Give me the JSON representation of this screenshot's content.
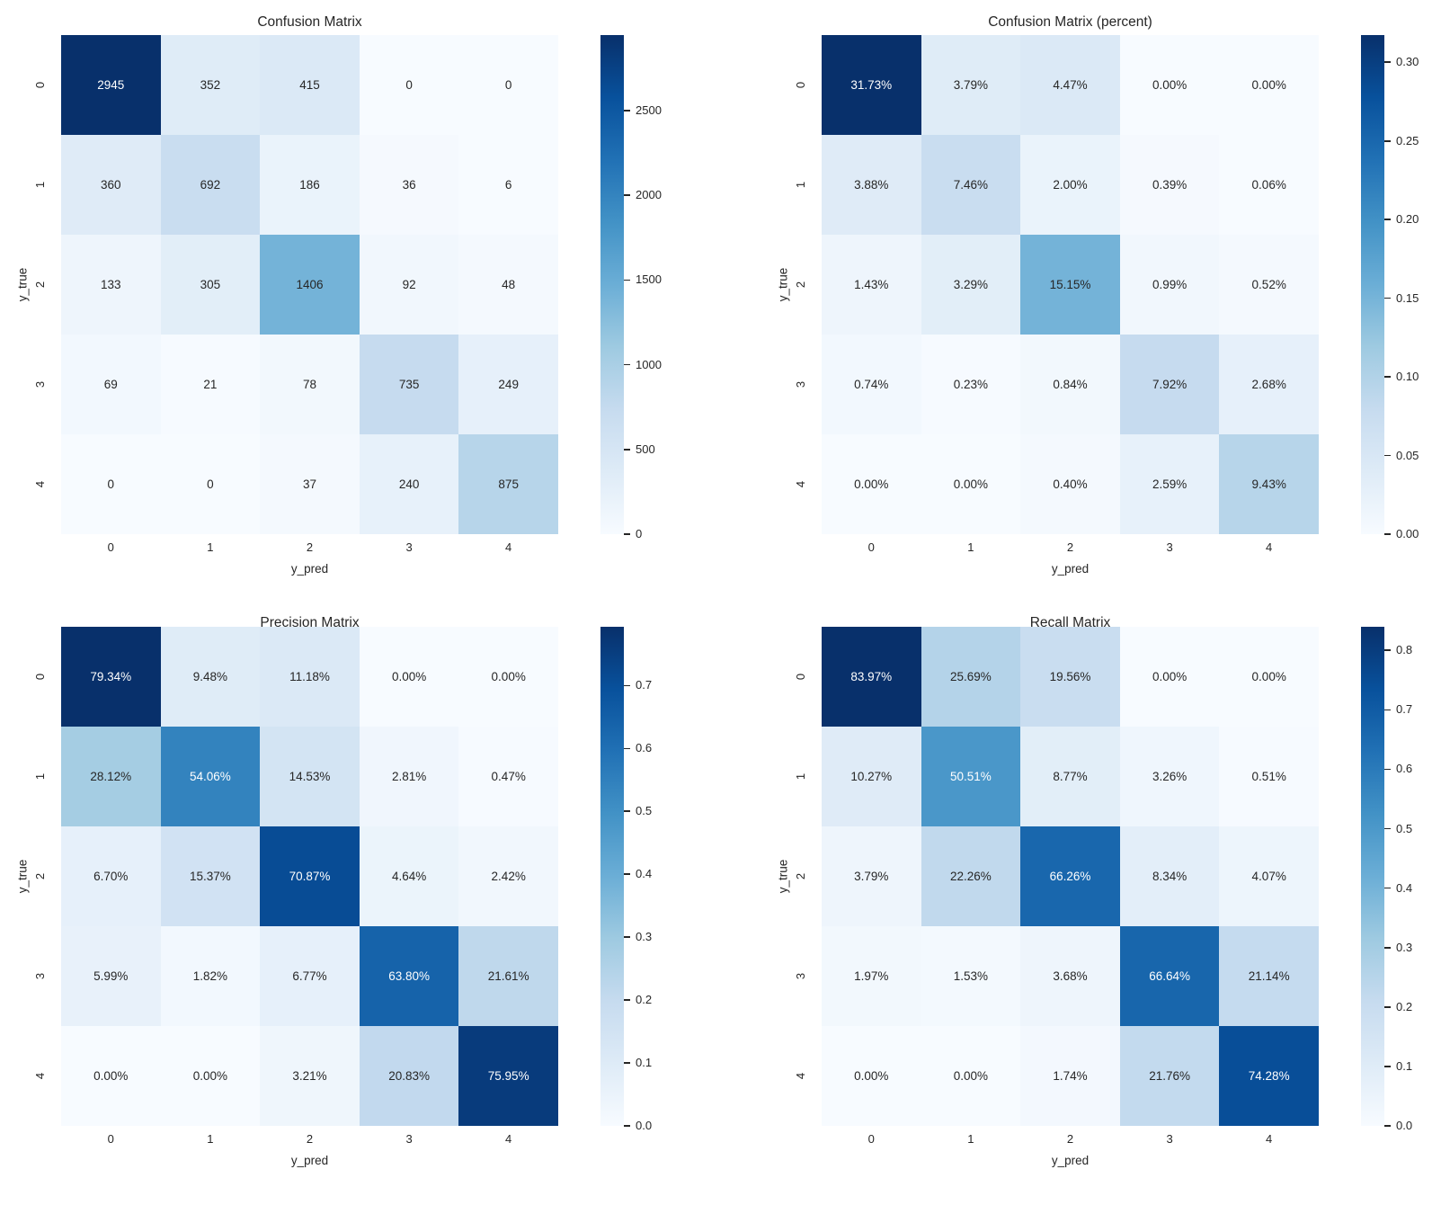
{
  "colors": {
    "cmap": "Blues",
    "background": "#ffffff",
    "annotation_dark": "#262626",
    "annotation_light": "#ffffff",
    "tick_color": "#262626",
    "cmap_low": "#f7fbff",
    "cmap_high": "#08306b"
  },
  "chart_data": [
    {
      "type": "heatmap",
      "title": "Confusion Matrix",
      "xlabel": "y_pred",
      "ylabel": "y_true",
      "x_categories": [
        "0",
        "1",
        "2",
        "3",
        "4"
      ],
      "y_categories": [
        "0",
        "1",
        "2",
        "3",
        "4"
      ],
      "values": [
        [
          2945,
          352,
          415,
          0,
          0
        ],
        [
          360,
          692,
          186,
          36,
          6
        ],
        [
          133,
          305,
          1406,
          92,
          48
        ],
        [
          69,
          21,
          78,
          735,
          249
        ],
        [
          0,
          0,
          37,
          240,
          875
        ]
      ],
      "annotations": [
        [
          "2945",
          "352",
          "415",
          "0",
          "0"
        ],
        [
          "360",
          "692",
          "186",
          "36",
          "6"
        ],
        [
          "133",
          "305",
          "1406",
          "92",
          "48"
        ],
        [
          "69",
          "21",
          "78",
          "735",
          "249"
        ],
        [
          "0",
          "0",
          "37",
          "240",
          "875"
        ]
      ],
      "vmin": 0,
      "vmax": 2945,
      "colorbar_ticks": [
        {
          "label": "0",
          "value": 0
        },
        {
          "label": "500",
          "value": 500
        },
        {
          "label": "1000",
          "value": 1000
        },
        {
          "label": "1500",
          "value": 1500
        },
        {
          "label": "2000",
          "value": 2000
        },
        {
          "label": "2500",
          "value": 2500
        }
      ]
    },
    {
      "type": "heatmap",
      "title": "Confusion Matrix (percent)",
      "xlabel": "y_pred",
      "ylabel": "y_true",
      "x_categories": [
        "0",
        "1",
        "2",
        "3",
        "4"
      ],
      "y_categories": [
        "0",
        "1",
        "2",
        "3",
        "4"
      ],
      "values": [
        [
          0.3173,
          0.0379,
          0.0447,
          0.0,
          0.0
        ],
        [
          0.0388,
          0.0746,
          0.02,
          0.0039,
          0.0006
        ],
        [
          0.0143,
          0.0329,
          0.1515,
          0.0099,
          0.0052
        ],
        [
          0.0074,
          0.0023,
          0.0084,
          0.0792,
          0.0268
        ],
        [
          0.0,
          0.0,
          0.004,
          0.0259,
          0.0943
        ]
      ],
      "annotations": [
        [
          "31.73%",
          "3.79%",
          "4.47%",
          "0.00%",
          "0.00%"
        ],
        [
          "3.88%",
          "7.46%",
          "2.00%",
          "0.39%",
          "0.06%"
        ],
        [
          "1.43%",
          "3.29%",
          "15.15%",
          "0.99%",
          "0.52%"
        ],
        [
          "0.74%",
          "0.23%",
          "0.84%",
          "7.92%",
          "2.68%"
        ],
        [
          "0.00%",
          "0.00%",
          "0.40%",
          "2.59%",
          "9.43%"
        ]
      ],
      "vmin": 0,
      "vmax": 0.3173,
      "colorbar_ticks": [
        {
          "label": "0.00",
          "value": 0.0
        },
        {
          "label": "0.05",
          "value": 0.05
        },
        {
          "label": "0.10",
          "value": 0.1
        },
        {
          "label": "0.15",
          "value": 0.15
        },
        {
          "label": "0.20",
          "value": 0.2
        },
        {
          "label": "0.25",
          "value": 0.25
        },
        {
          "label": "0.30",
          "value": 0.3
        }
      ]
    },
    {
      "type": "heatmap",
      "title": "Precision Matrix",
      "xlabel": "y_pred",
      "ylabel": "y_true",
      "x_categories": [
        "0",
        "1",
        "2",
        "3",
        "4"
      ],
      "y_categories": [
        "0",
        "1",
        "2",
        "3",
        "4"
      ],
      "values": [
        [
          0.7934,
          0.0948,
          0.1118,
          0.0,
          0.0
        ],
        [
          0.2812,
          0.5406,
          0.1453,
          0.0281,
          0.0047
        ],
        [
          0.067,
          0.1537,
          0.7087,
          0.0464,
          0.0242
        ],
        [
          0.0599,
          0.0182,
          0.0677,
          0.638,
          0.2161
        ],
        [
          0.0,
          0.0,
          0.0321,
          0.2083,
          0.7595
        ]
      ],
      "annotations": [
        [
          "79.34%",
          "9.48%",
          "11.18%",
          "0.00%",
          "0.00%"
        ],
        [
          "28.12%",
          "54.06%",
          "14.53%",
          "2.81%",
          "0.47%"
        ],
        [
          "6.70%",
          "15.37%",
          "70.87%",
          "4.64%",
          "2.42%"
        ],
        [
          "5.99%",
          "1.82%",
          "6.77%",
          "63.80%",
          "21.61%"
        ],
        [
          "0.00%",
          "0.00%",
          "3.21%",
          "20.83%",
          "75.95%"
        ]
      ],
      "vmin": 0,
      "vmax": 0.7934,
      "colorbar_ticks": [
        {
          "label": "0.0",
          "value": 0.0
        },
        {
          "label": "0.1",
          "value": 0.1
        },
        {
          "label": "0.2",
          "value": 0.2
        },
        {
          "label": "0.3",
          "value": 0.3
        },
        {
          "label": "0.4",
          "value": 0.4
        },
        {
          "label": "0.5",
          "value": 0.5
        },
        {
          "label": "0.6",
          "value": 0.6
        },
        {
          "label": "0.7",
          "value": 0.7
        }
      ]
    },
    {
      "type": "heatmap",
      "title": "Recall Matrix",
      "xlabel": "y_pred",
      "ylabel": "y_true",
      "x_categories": [
        "0",
        "1",
        "2",
        "3",
        "4"
      ],
      "y_categories": [
        "0",
        "1",
        "2",
        "3",
        "4"
      ],
      "values": [
        [
          0.8397,
          0.2569,
          0.1956,
          0.0,
          0.0
        ],
        [
          0.1027,
          0.5051,
          0.0877,
          0.0326,
          0.0051
        ],
        [
          0.0379,
          0.2226,
          0.6626,
          0.0834,
          0.0407
        ],
        [
          0.0197,
          0.0153,
          0.0368,
          0.6664,
          0.2114
        ],
        [
          0.0,
          0.0,
          0.0174,
          0.2176,
          0.7428
        ]
      ],
      "annotations": [
        [
          "83.97%",
          "25.69%",
          "19.56%",
          "0.00%",
          "0.00%"
        ],
        [
          "10.27%",
          "50.51%",
          "8.77%",
          "3.26%",
          "0.51%"
        ],
        [
          "3.79%",
          "22.26%",
          "66.26%",
          "8.34%",
          "4.07%"
        ],
        [
          "1.97%",
          "1.53%",
          "3.68%",
          "66.64%",
          "21.14%"
        ],
        [
          "0.00%",
          "0.00%",
          "1.74%",
          "21.76%",
          "74.28%"
        ]
      ],
      "vmin": 0,
      "vmax": 0.8397,
      "colorbar_ticks": [
        {
          "label": "0.0",
          "value": 0.0
        },
        {
          "label": "0.1",
          "value": 0.1
        },
        {
          "label": "0.2",
          "value": 0.2
        },
        {
          "label": "0.3",
          "value": 0.3
        },
        {
          "label": "0.4",
          "value": 0.4
        },
        {
          "label": "0.5",
          "value": 0.5
        },
        {
          "label": "0.6",
          "value": 0.6
        },
        {
          "label": "0.7",
          "value": 0.7
        },
        {
          "label": "0.8",
          "value": 0.8
        }
      ]
    }
  ]
}
